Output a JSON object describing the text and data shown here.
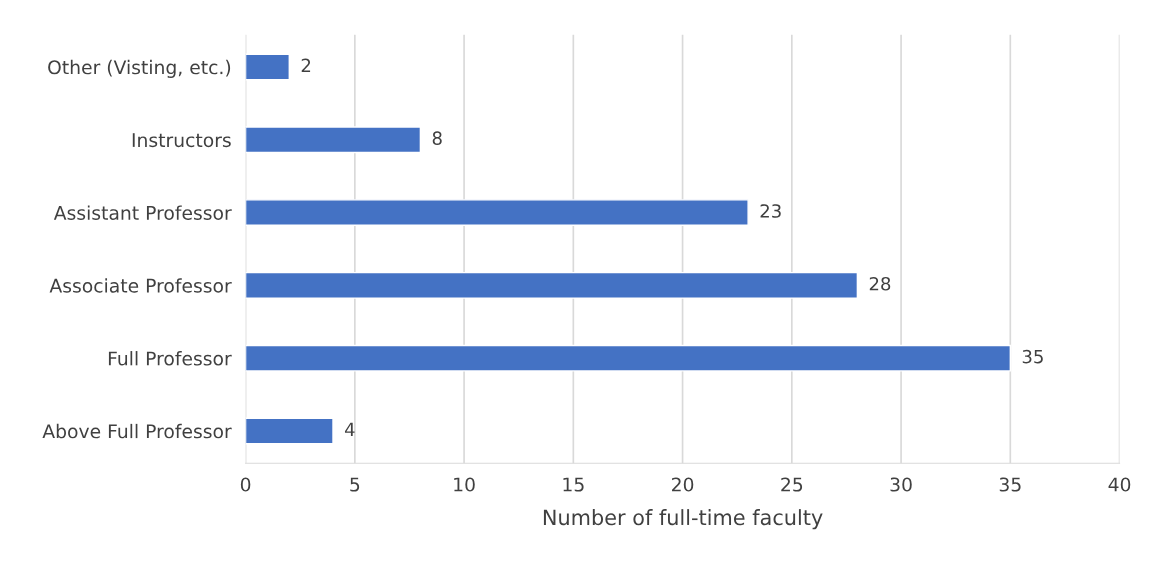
{
  "chart_data": {
    "type": "bar",
    "orientation": "horizontal",
    "xlabel": "Number of full-time faculty",
    "categories": [
      "Other (Visting, etc.)",
      "Instructors",
      "Assistant Professor",
      "Associate Professor",
      "Full Professor",
      "Above Full Professor"
    ],
    "values": [
      2,
      8,
      23,
      28,
      35,
      4
    ],
    "color": "#4472c4",
    "data_labels": true,
    "xlim": [
      0,
      40
    ],
    "xticks": [
      0,
      5,
      10,
      15,
      20,
      25,
      30,
      35,
      40
    ],
    "grid": "x",
    "legend": false
  }
}
